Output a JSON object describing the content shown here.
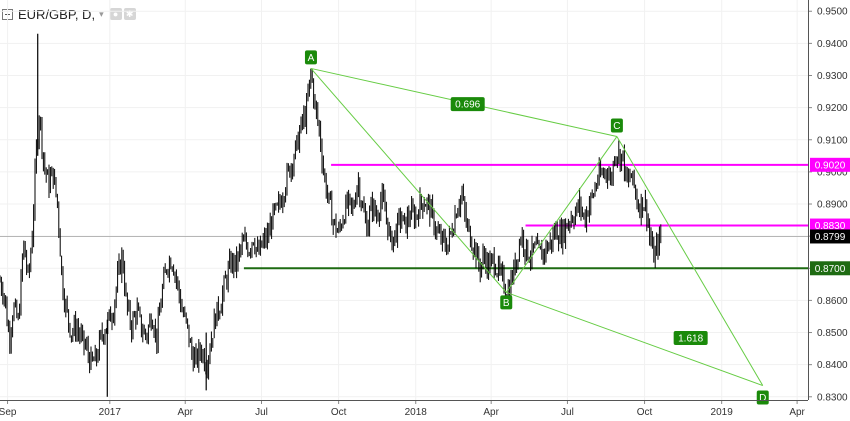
{
  "header": {
    "symbol_label": "EUR/GBP, D,",
    "caret": "▾",
    "icons": [
      "eye-icon",
      "settings-icon"
    ]
  },
  "colors": {
    "candle": "#000000",
    "pattern": "#66cc44",
    "label_bg": "#1a8a0a",
    "resistance": "#ff00ff",
    "support": "#1e6b12",
    "last_price_bg": "#000000"
  },
  "chart_data": {
    "type": "line",
    "ylim": [
      0.829,
      0.9535
    ],
    "xlim": [
      "2016-08-23",
      "2019-04-14"
    ],
    "y_ticks": [
      "0.9500",
      "0.9400",
      "0.9300",
      "0.9200",
      "0.9100",
      "0.9000",
      "0.8900",
      "0.8800",
      "0.8700",
      "0.8600",
      "0.8500",
      "0.8400",
      "0.8300"
    ],
    "x_ticks": [
      {
        "label": "Sep",
        "date": "2016-09-01"
      },
      {
        "label": "2017",
        "date": "2017-01-01"
      },
      {
        "label": "Apr",
        "date": "2017-04-01"
      },
      {
        "label": "Jul",
        "date": "2017-07-01"
      },
      {
        "label": "Oct",
        "date": "2017-10-01"
      },
      {
        "label": "2018",
        "date": "2018-01-01"
      },
      {
        "label": "Apr",
        "date": "2018-04-01"
      },
      {
        "label": "Jul",
        "date": "2018-07-01"
      },
      {
        "label": "Oct",
        "date": "2018-10-01"
      },
      {
        "label": "2019",
        "date": "2019-01-01"
      },
      {
        "label": "Apr",
        "date": "2019-04-01"
      }
    ],
    "price_path": [
      [
        "2016-08-23",
        0.866
      ],
      [
        "2016-08-28",
        0.862
      ],
      [
        "2016-09-03",
        0.848
      ],
      [
        "2016-09-08",
        0.858
      ],
      [
        "2016-09-14",
        0.853
      ],
      [
        "2016-09-20",
        0.878
      ],
      [
        "2016-09-26",
        0.866
      ],
      [
        "2016-10-01",
        0.883
      ],
      [
        "2016-10-05",
        0.905
      ],
      [
        "2016-10-09",
        0.919
      ],
      [
        "2016-10-14",
        0.903
      ],
      [
        "2016-10-20",
        0.896
      ],
      [
        "2016-10-25",
        0.9
      ],
      [
        "2016-10-31",
        0.889
      ],
      [
        "2016-11-05",
        0.866
      ],
      [
        "2016-11-10",
        0.857
      ],
      [
        "2016-11-16",
        0.85
      ],
      [
        "2016-11-22",
        0.852
      ],
      [
        "2016-11-28",
        0.848
      ],
      [
        "2016-12-04",
        0.845
      ],
      [
        "2016-12-10",
        0.84
      ],
      [
        "2016-12-16",
        0.842
      ],
      [
        "2016-12-22",
        0.849
      ],
      [
        "2016-12-29",
        0.853
      ],
      [
        "2017-01-05",
        0.857
      ],
      [
        "2017-01-11",
        0.868
      ],
      [
        "2017-01-16",
        0.874
      ],
      [
        "2017-01-21",
        0.858
      ],
      [
        "2017-01-27",
        0.852
      ],
      [
        "2017-02-02",
        0.857
      ],
      [
        "2017-02-08",
        0.851
      ],
      [
        "2017-02-14",
        0.849
      ],
      [
        "2017-02-20",
        0.856
      ],
      [
        "2017-02-26",
        0.848
      ],
      [
        "2017-03-04",
        0.862
      ],
      [
        "2017-03-10",
        0.871
      ],
      [
        "2017-03-16",
        0.873
      ],
      [
        "2017-03-22",
        0.866
      ],
      [
        "2017-03-28",
        0.857
      ],
      [
        "2017-04-03",
        0.852
      ],
      [
        "2017-04-09",
        0.843
      ],
      [
        "2017-04-14",
        0.841
      ],
      [
        "2017-04-20",
        0.845
      ],
      [
        "2017-04-26",
        0.84
      ],
      [
        "2017-05-02",
        0.848
      ],
      [
        "2017-05-07",
        0.855
      ],
      [
        "2017-05-13",
        0.859
      ],
      [
        "2017-05-19",
        0.866
      ],
      [
        "2017-05-26",
        0.872
      ],
      [
        "2017-06-01",
        0.871
      ],
      [
        "2017-06-06",
        0.876
      ],
      [
        "2017-06-11",
        0.878
      ],
      [
        "2017-06-16",
        0.876
      ],
      [
        "2017-06-21",
        0.88
      ],
      [
        "2017-06-27",
        0.874
      ],
      [
        "2017-07-03",
        0.878
      ],
      [
        "2017-07-09",
        0.88
      ],
      [
        "2017-07-14",
        0.886
      ],
      [
        "2017-07-20",
        0.888
      ],
      [
        "2017-07-26",
        0.893
      ],
      [
        "2017-08-01",
        0.899
      ],
      [
        "2017-08-06",
        0.903
      ],
      [
        "2017-08-12",
        0.908
      ],
      [
        "2017-08-18",
        0.915
      ],
      [
        "2017-08-23",
        0.918
      ],
      [
        "2017-08-29",
        0.931
      ],
      [
        "2017-09-03",
        0.92
      ],
      [
        "2017-09-08",
        0.913
      ],
      [
        "2017-09-14",
        0.898
      ],
      [
        "2017-09-20",
        0.89
      ],
      [
        "2017-09-25",
        0.884
      ],
      [
        "2017-10-01",
        0.881
      ],
      [
        "2017-10-07",
        0.887
      ],
      [
        "2017-10-12",
        0.89
      ],
      [
        "2017-10-18",
        0.888
      ],
      [
        "2017-10-24",
        0.898
      ],
      [
        "2017-10-29",
        0.889
      ],
      [
        "2017-11-04",
        0.883
      ],
      [
        "2017-11-10",
        0.89
      ],
      [
        "2017-11-15",
        0.886
      ],
      [
        "2017-11-21",
        0.892
      ],
      [
        "2017-11-27",
        0.886
      ],
      [
        "2017-12-02",
        0.878
      ],
      [
        "2017-12-08",
        0.881
      ],
      [
        "2017-12-14",
        0.886
      ],
      [
        "2017-12-19",
        0.883
      ],
      [
        "2017-12-25",
        0.887
      ],
      [
        "2018-01-01",
        0.886
      ],
      [
        "2018-01-06",
        0.89
      ],
      [
        "2018-01-12",
        0.891
      ],
      [
        "2018-01-17",
        0.889
      ],
      [
        "2018-01-23",
        0.884
      ],
      [
        "2018-01-28",
        0.88
      ],
      [
        "2018-02-03",
        0.878
      ],
      [
        "2018-02-08",
        0.877
      ],
      [
        "2018-02-14",
        0.883
      ],
      [
        "2018-02-19",
        0.889
      ],
      [
        "2018-02-25",
        0.893
      ],
      [
        "2018-03-02",
        0.884
      ],
      [
        "2018-03-07",
        0.88
      ],
      [
        "2018-03-13",
        0.876
      ],
      [
        "2018-03-18",
        0.87
      ],
      [
        "2018-03-24",
        0.874
      ],
      [
        "2018-03-29",
        0.87
      ],
      [
        "2018-04-04",
        0.873
      ],
      [
        "2018-04-09",
        0.869
      ],
      [
        "2018-04-15",
        0.866
      ],
      [
        "2018-04-20",
        0.862
      ],
      [
        "2018-04-26",
        0.867
      ],
      [
        "2018-05-01",
        0.873
      ],
      [
        "2018-05-07",
        0.881
      ],
      [
        "2018-05-12",
        0.876
      ],
      [
        "2018-05-18",
        0.874
      ],
      [
        "2018-05-24",
        0.876
      ],
      [
        "2018-05-30",
        0.874
      ],
      [
        "2018-06-05",
        0.876
      ],
      [
        "2018-06-11",
        0.878
      ],
      [
        "2018-06-17",
        0.882
      ],
      [
        "2018-06-23",
        0.88
      ],
      [
        "2018-06-29",
        0.883
      ],
      [
        "2018-07-05",
        0.886
      ],
      [
        "2018-07-10",
        0.887
      ],
      [
        "2018-07-16",
        0.89
      ],
      [
        "2018-07-21",
        0.885
      ],
      [
        "2018-07-27",
        0.89
      ],
      [
        "2018-08-01",
        0.893
      ],
      [
        "2018-08-06",
        0.898
      ],
      [
        "2018-08-11",
        0.899
      ],
      [
        "2018-08-17",
        0.901
      ],
      [
        "2018-08-22",
        0.897
      ],
      [
        "2018-08-27",
        0.907
      ],
      [
        "2018-09-01",
        0.905
      ],
      [
        "2018-09-05",
        0.905
      ],
      [
        "2018-09-10",
        0.896
      ],
      [
        "2018-09-15",
        0.899
      ],
      [
        "2018-09-19",
        0.895
      ],
      [
        "2018-09-24",
        0.889
      ],
      [
        "2018-09-29",
        0.891
      ],
      [
        "2018-10-03",
        0.889
      ],
      [
        "2018-10-08",
        0.878
      ],
      [
        "2018-10-13",
        0.873
      ],
      [
        "2018-10-17",
        0.878
      ],
      [
        "2018-10-21",
        0.88
      ]
    ],
    "spikes": [
      {
        "date": "2016-10-07",
        "high": 0.943,
        "low": 0.905
      },
      {
        "date": "2016-12-29",
        "high": 0.854,
        "low": 0.83
      },
      {
        "date": "2017-04-26",
        "high": 0.85,
        "low": 0.832
      }
    ],
    "pattern_points": [
      {
        "label": "A",
        "date": "2017-08-29",
        "value": 0.9322
      },
      {
        "label": "B",
        "date": "2018-04-19",
        "value": 0.8625
      },
      {
        "label": "C",
        "date": "2018-08-29",
        "value": 0.911
      },
      {
        "label": "D",
        "date": "2019-02-19",
        "value": 0.8335
      }
    ],
    "ratios": [
      {
        "label": "0.696",
        "date": "2018-03-04",
        "value": 0.9211
      },
      {
        "label": "1.618",
        "date": "2018-11-25",
        "value": 0.8483
      }
    ],
    "horizontal_levels": [
      {
        "label": "0.9020",
        "value": 0.9022,
        "start": "2017-09-22",
        "color": "resistance"
      },
      {
        "label": "0.8830",
        "value": 0.8833,
        "start": "2018-05-12",
        "color": "resistance"
      },
      {
        "label": "0.8700",
        "value": 0.87,
        "start": "2017-06-10",
        "color": "support"
      }
    ],
    "last_price": {
      "label": "0.8799",
      "value": 0.8799
    }
  }
}
